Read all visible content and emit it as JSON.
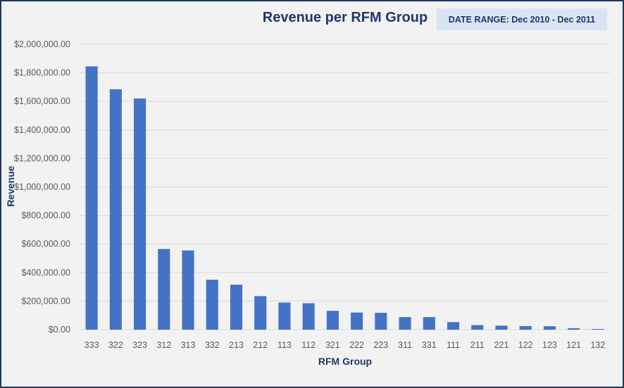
{
  "chart_data": {
    "type": "bar",
    "title": "Revenue per RFM Group",
    "subtitle": "DATE RANGE: Dec 2010 - Dec 2011",
    "xlabel": "RFM Group",
    "ylabel": "Revenue",
    "categories": [
      "333",
      "322",
      "323",
      "312",
      "313",
      "332",
      "213",
      "212",
      "113",
      "112",
      "321",
      "222",
      "223",
      "311",
      "331",
      "111",
      "211",
      "221",
      "122",
      "123",
      "121",
      "132"
    ],
    "values": [
      1845000,
      1685000,
      1620000,
      565000,
      555000,
      350000,
      315000,
      235000,
      190000,
      185000,
      132000,
      120000,
      118000,
      88000,
      88000,
      53000,
      32000,
      28000,
      25000,
      24000,
      10000,
      5000
    ],
    "ylim": [
      0,
      2000000
    ],
    "yticks": [
      0,
      200000,
      400000,
      600000,
      800000,
      1000000,
      1200000,
      1400000,
      1600000,
      1800000,
      2000000
    ],
    "ytick_labels": [
      "$0.00",
      "$200,000.00",
      "$400,000.00",
      "$600,000.00",
      "$800,000.00",
      "$1,000,000.00",
      "$1,200,000.00",
      "$1,400,000.00",
      "$1,600,000.00",
      "$1,800,000.00",
      "$2,000,000.00"
    ],
    "grid": true,
    "legend": "none",
    "colors": {
      "bar": "#4472c4",
      "grid": "#d9d9d9",
      "title": "#1f3864",
      "background": "#f2f2f2",
      "date_box": "#dae3f3"
    }
  }
}
